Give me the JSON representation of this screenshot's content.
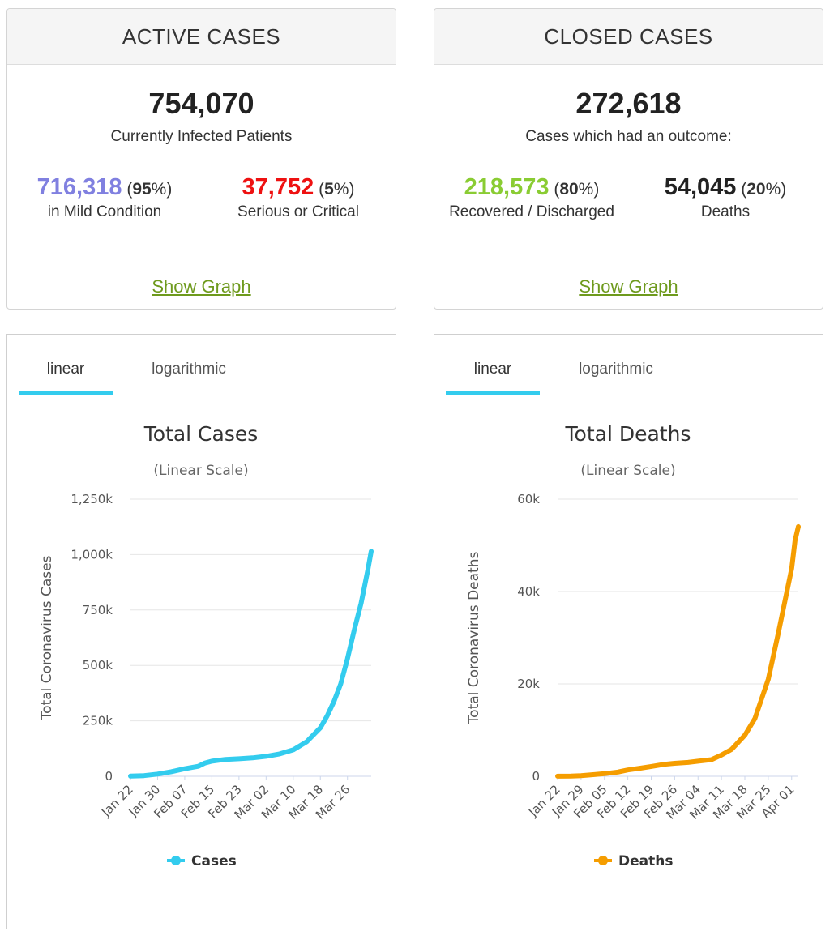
{
  "active": {
    "header": "ACTIVE CASES",
    "total": "754,070",
    "subtitle": "Currently Infected Patients",
    "left": {
      "value": "716,318",
      "pct": "95",
      "label": "in Mild Condition",
      "color": "#8080e0"
    },
    "right": {
      "value": "37,752",
      "pct": "5",
      "label": "Serious or Critical",
      "color": "#ee1111"
    },
    "link": "Show Graph"
  },
  "closed": {
    "header": "CLOSED CASES",
    "total": "272,618",
    "subtitle": "Cases which had an outcome:",
    "left": {
      "value": "218,573",
      "pct": "80",
      "label": "Recovered / Discharged",
      "color": "#8acc33"
    },
    "right": {
      "value": "54,045",
      "pct": "20",
      "label": "Deaths",
      "color": "#222222"
    },
    "link": "Show Graph"
  },
  "tabs": {
    "linear": "linear",
    "log": "logarithmic"
  },
  "chart_data": [
    {
      "type": "line",
      "title": "Total Cases",
      "subtitle": "(Linear Scale)",
      "xlabel": "",
      "ylabel": "Total Coronavirus Cases",
      "color": "#33ccee",
      "ylim": [
        0,
        1250000
      ],
      "yticks": [
        0,
        250000,
        500000,
        750000,
        1000000,
        1250000
      ],
      "ytick_labels": [
        "0",
        "250k",
        "500k",
        "750k",
        "1,000k",
        "1,250k"
      ],
      "x_labels": [
        "Jan 22",
        "Jan 30",
        "Feb 07",
        "Feb 15",
        "Feb 23",
        "Mar 02",
        "Mar 10",
        "Mar 18",
        "Mar 26"
      ],
      "x_label_every": 8,
      "grid": true,
      "legend_position": "bottom",
      "series": [
        {
          "name": "Cases",
          "x": [
            "Jan 22",
            "Jan 26",
            "Jan 30",
            "Feb 03",
            "Feb 07",
            "Feb 11",
            "Feb 13",
            "Feb 15",
            "Feb 19",
            "Feb 23",
            "Feb 27",
            "Mar 02",
            "Mar 06",
            "Mar 10",
            "Mar 14",
            "Mar 18",
            "Mar 20",
            "Mar 22",
            "Mar 24",
            "Mar 26",
            "Mar 28",
            "Mar 30",
            "Apr 01",
            "Apr 02"
          ],
          "values": [
            555,
            2800,
            9800,
            20600,
            34000,
            45000,
            60000,
            68000,
            76000,
            79000,
            83000,
            90000,
            101000,
            119000,
            156000,
            219000,
            272000,
            337000,
            417000,
            530000,
            660000,
            780000,
            930000,
            1015000
          ]
        }
      ]
    },
    {
      "type": "line",
      "title": "Total Deaths",
      "subtitle": "(Linear Scale)",
      "xlabel": "",
      "ylabel": "Total Coronavirus Deaths",
      "color": "#f59d00",
      "ylim": [
        0,
        60000
      ],
      "yticks": [
        0,
        20000,
        40000,
        60000
      ],
      "ytick_labels": [
        "0",
        "20k",
        "40k",
        "60k"
      ],
      "x_labels": [
        "Jan 22",
        "Jan 29",
        "Feb 05",
        "Feb 12",
        "Feb 19",
        "Feb 26",
        "Mar 04",
        "Mar 11",
        "Mar 18",
        "Mar 25",
        "Apr 01"
      ],
      "x_label_every": 7,
      "grid": true,
      "legend_position": "bottom",
      "series": [
        {
          "name": "Deaths",
          "x": [
            "Jan 22",
            "Jan 26",
            "Jan 29",
            "Feb 02",
            "Feb 05",
            "Feb 09",
            "Feb 12",
            "Feb 16",
            "Feb 19",
            "Feb 23",
            "Feb 26",
            "Mar 01",
            "Mar 04",
            "Mar 08",
            "Mar 11",
            "Mar 14",
            "Mar 18",
            "Mar 21",
            "Mar 25",
            "Mar 28",
            "Apr 01",
            "Apr 02",
            "Apr 03"
          ],
          "values": [
            17,
            56,
            133,
            362,
            565,
            905,
            1370,
            1770,
            2130,
            2600,
            2810,
            3000,
            3260,
            3600,
            4600,
            5800,
            8900,
            12500,
            21000,
            31000,
            45000,
            51000,
            54045
          ]
        }
      ]
    }
  ]
}
